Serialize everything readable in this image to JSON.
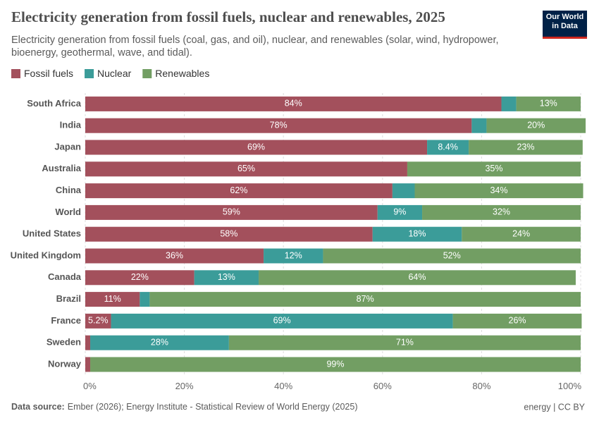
{
  "chart_data": {
    "type": "stacked-bar-horizontal",
    "title": "Electricity generation from fossil fuels, nuclear and renewables, 2025",
    "subtitle": "Electricity generation from fossil fuels (coal, gas, and oil), nuclear, and renewables (solar, wind, hydropower, bioenergy, geothermal, wave, and tidal).",
    "logo": "Our World in Data",
    "source_label": "Data source:",
    "source": "Ember (2026); Energy Institute - Statistical Review of World Energy (2025)",
    "license": "energy | CC BY",
    "categories": [
      "South Africa",
      "India",
      "Japan",
      "Australia",
      "China",
      "World",
      "United States",
      "United Kingdom",
      "Canada",
      "Brazil",
      "France",
      "Sweden",
      "Norway"
    ],
    "series": [
      {
        "name": "Fossil fuels",
        "color": "#a3505c",
        "values": [
          84,
          78,
          69,
          65,
          62,
          59,
          58,
          36,
          22,
          11,
          5.2,
          1,
          1
        ],
        "value_labels": [
          "84%",
          "78%",
          "69%",
          "65%",
          "62%",
          "59%",
          "58%",
          "36%",
          "22%",
          "11%",
          "5.2%",
          null,
          null
        ]
      },
      {
        "name": "Nuclear",
        "color": "#3b9c99",
        "values": [
          3,
          3,
          8.4,
          0,
          4.5,
          9,
          18,
          12,
          13,
          2,
          69,
          28,
          0
        ],
        "value_labels": [
          null,
          null,
          "8.4%",
          null,
          null,
          "9%",
          "18%",
          "12%",
          "13%",
          null,
          "69%",
          "28%",
          null
        ]
      },
      {
        "name": "Renewables",
        "color": "#729e63",
        "values": [
          13,
          20,
          23,
          35,
          34,
          32,
          24,
          52,
          64,
          87,
          26,
          71,
          99
        ],
        "value_labels": [
          "13%",
          "20%",
          "23%",
          "35%",
          "34%",
          "32%",
          "24%",
          "52%",
          "64%",
          "87%",
          "26%",
          "71%",
          "99%"
        ]
      }
    ],
    "xlim": [
      0,
      100
    ],
    "xticks": [
      {
        "value": 0,
        "label": "0%"
      },
      {
        "value": 20,
        "label": "20%"
      },
      {
        "value": 40,
        "label": "40%"
      },
      {
        "value": 60,
        "label": "60%"
      },
      {
        "value": 80,
        "label": "80%"
      },
      {
        "value": 100,
        "label": "100%"
      }
    ],
    "grid": true
  }
}
